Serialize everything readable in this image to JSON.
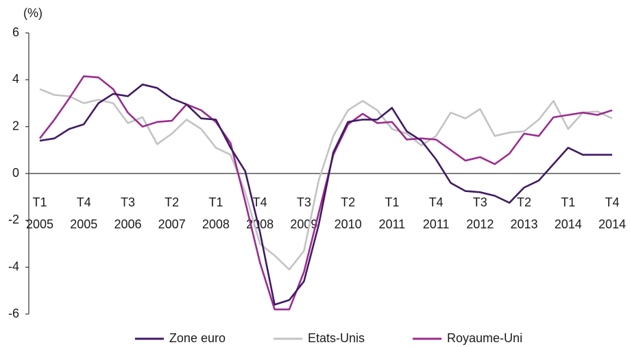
{
  "chart_data": {
    "type": "line",
    "y_label": "(%)",
    "categories": [
      "T1 2005",
      null,
      null,
      "T4 2005",
      null,
      null,
      "T3 2006",
      null,
      null,
      "T2 2007",
      null,
      null,
      "T1 2008",
      null,
      null,
      "T4 2008",
      null,
      null,
      "T3 2009",
      null,
      null,
      "T2 2010",
      null,
      null,
      "T1 2011",
      null,
      null,
      "T4 2011",
      null,
      null,
      "T3 2012",
      null,
      null,
      "T2 2013",
      null,
      null,
      "T1 2014",
      null,
      null,
      "T4 2014"
    ],
    "ylim": [
      -6,
      6
    ],
    "yticks": [
      -6,
      -4,
      -2,
      0,
      2,
      4,
      6
    ],
    "series": [
      {
        "name": "Zone euro",
        "color": "#3f1a63",
        "values": [
          1.4,
          1.5,
          1.9,
          2.1,
          3.0,
          3.4,
          3.3,
          3.8,
          3.65,
          3.2,
          2.95,
          2.35,
          2.3,
          1.1,
          0.1,
          -2.5,
          -5.6,
          -5.4,
          -4.6,
          -2.2,
          0.9,
          2.2,
          2.3,
          2.3,
          2.8,
          1.8,
          1.4,
          0.6,
          -0.4,
          -0.75,
          -0.8,
          -0.95,
          -1.25,
          -0.6,
          -0.3,
          0.4,
          1.1,
          0.8,
          0.8,
          0.8
        ]
      },
      {
        "name": "Etats-Unis",
        "color": "#c3c3c3",
        "values": [
          3.6,
          3.35,
          3.3,
          3.0,
          3.15,
          3.0,
          2.15,
          2.4,
          1.25,
          1.7,
          2.3,
          1.9,
          1.1,
          0.8,
          -0.8,
          -3.0,
          -3.5,
          -4.1,
          -3.3,
          -0.3,
          1.6,
          2.7,
          3.1,
          2.7,
          1.9,
          1.7,
          1.2,
          1.6,
          2.6,
          2.35,
          2.75,
          1.6,
          1.75,
          1.8,
          2.3,
          3.1,
          1.9,
          2.6,
          2.65,
          2.35
        ]
      },
      {
        "name": "Royaume-Uni",
        "color": "#9c2b8e",
        "values": [
          1.5,
          2.3,
          3.2,
          4.15,
          4.1,
          3.6,
          2.6,
          2.0,
          2.2,
          2.25,
          2.95,
          2.7,
          2.2,
          1.3,
          -1.2,
          -3.8,
          -5.8,
          -5.8,
          -4.2,
          -1.7,
          0.8,
          2.1,
          2.55,
          2.15,
          2.2,
          1.45,
          1.5,
          1.45,
          1.0,
          0.55,
          0.7,
          0.4,
          0.85,
          1.7,
          1.6,
          2.4,
          2.5,
          2.6,
          2.5,
          2.7
        ]
      }
    ]
  }
}
